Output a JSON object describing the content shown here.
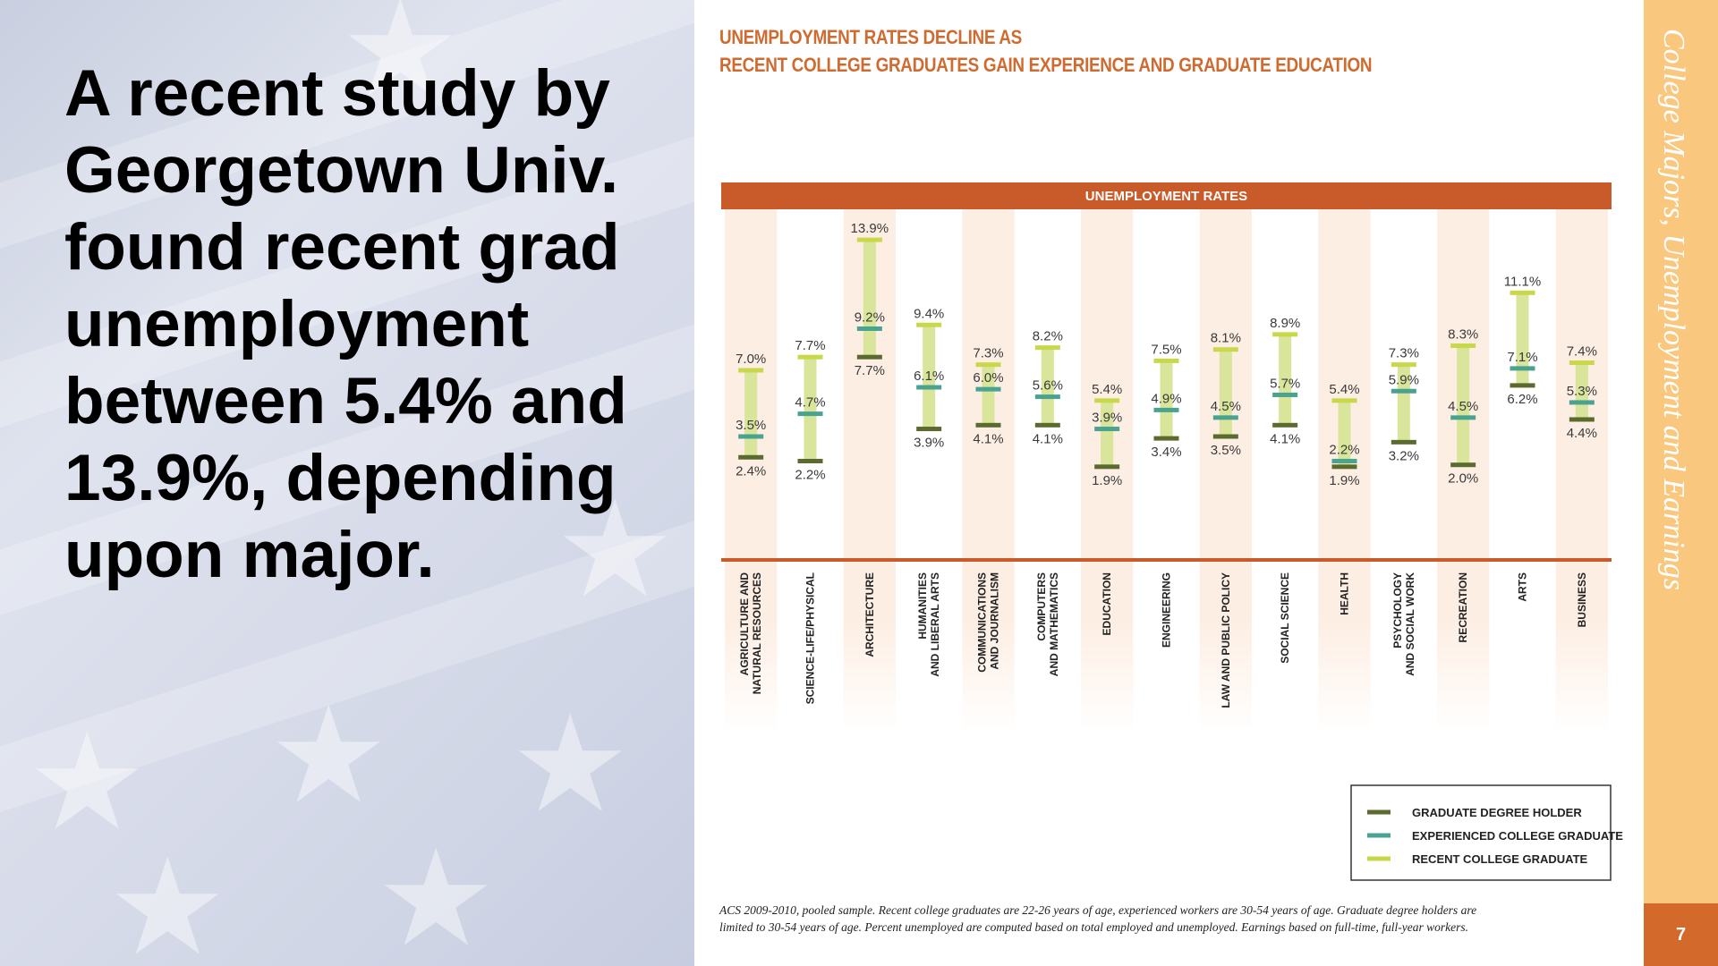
{
  "slide": {
    "headline": "A recent study by Georgetown Univ. found recent grad unemployment between 5.4% and 13.9%, depending upon major.",
    "side_title": "College Majors, Unemployment and Earnings",
    "page_number": "7"
  },
  "colors": {
    "accent_orange": "#c95a2a",
    "title_orange": "#cf6b30",
    "sidebar": "#f9c77d",
    "page_box": "#d36a2c",
    "graduate": "#5b6a2e",
    "experienced": "#4aa391",
    "recent": "#c9d84a",
    "recent_bar": "#d8e59a",
    "column_tint": "#fdeee3"
  },
  "chart_data": {
    "type": "range",
    "title_lines": [
      "UNEMPLOYMENT RATES DECLINE AS",
      "RECENT COLLEGE GRADUATES GAIN EXPERIENCE AND GRADUATE EDUCATION"
    ],
    "band_label": "UNEMPLOYMENT RATES",
    "categories": [
      [
        "AGRICULTURE AND",
        "NATURAL RESOURCES"
      ],
      [
        "SCIENCE-LIFE/PHYSICAL"
      ],
      [
        "ARCHITECTURE"
      ],
      [
        "HUMANITIES",
        "AND LIBERAL ARTS"
      ],
      [
        "COMMUNICATIONS",
        "AND JOURNALISM"
      ],
      [
        "COMPUTERS",
        "AND MATHEMATICS"
      ],
      [
        "EDUCATION"
      ],
      [
        "ENGINEERING"
      ],
      [
        "LAW AND PUBLIC POLICY"
      ],
      [
        "SOCIAL SCIENCE"
      ],
      [
        "HEALTH"
      ],
      [
        "PSYCHOLOGY",
        "AND SOCIAL WORK"
      ],
      [
        "RECREATION"
      ],
      [
        "ARTS"
      ],
      [
        "BUSINESS"
      ]
    ],
    "series": [
      {
        "name": "GRADUATE DEGREE HOLDER",
        "key": "graduate",
        "values": [
          2.4,
          2.2,
          7.7,
          3.9,
          4.1,
          4.1,
          1.9,
          3.4,
          3.5,
          4.1,
          1.9,
          3.2,
          2.0,
          6.2,
          4.4
        ]
      },
      {
        "name": "EXPERIENCED COLLEGE GRADUATE",
        "key": "experienced",
        "values": [
          3.5,
          4.7,
          9.2,
          6.1,
          6.0,
          5.6,
          3.9,
          4.9,
          4.5,
          5.7,
          2.2,
          5.9,
          4.5,
          7.1,
          5.3
        ]
      },
      {
        "name": "RECENT COLLEGE GRADUATE",
        "key": "recent",
        "values": [
          7.0,
          7.7,
          13.9,
          9.4,
          7.3,
          8.2,
          5.4,
          7.5,
          8.1,
          8.9,
          5.4,
          7.3,
          8.3,
          11.1,
          7.4
        ]
      }
    ],
    "value_labels": {
      "graduate": [
        "2.4%",
        "2.2%",
        "7.7%",
        "3.9%",
        "4.1%",
        "4.1%",
        "1.9%",
        "3.4%",
        "3.5%",
        "4.1%",
        "1.9%",
        "3.2%",
        "2.0%",
        "6.2%",
        "4.4%"
      ],
      "experienced": [
        "3.5%",
        "4.7%",
        "9.2%",
        "6.1%",
        "6.0%",
        "5.6%",
        "3.9%",
        "4.9%",
        "4.5%",
        "5.7%",
        "2.2%",
        "5.9%",
        "4.5%",
        "7.1%",
        "5.3%"
      ],
      "recent": [
        "7.0%",
        "7.7%",
        "13.9%",
        "9.4%",
        "7.3%",
        "8.2%",
        "5.4%",
        "7.5%",
        "8.1%",
        "8.9%",
        "5.4%",
        "7.3%",
        "8.3%",
        "11.1%",
        "7.4%"
      ]
    },
    "ylim": [
      0,
      14
    ],
    "legend_position": "bottom-right",
    "footnote": "ACS 2009-2010, pooled sample. Recent college graduates are 22-26 years of age, experienced workers are 30-54 years of age. Graduate degree holders are limited to 30-54 years of age. Percent unemployed are computed based on total employed and unemployed. Earnings based on full-time, full-year workers."
  }
}
